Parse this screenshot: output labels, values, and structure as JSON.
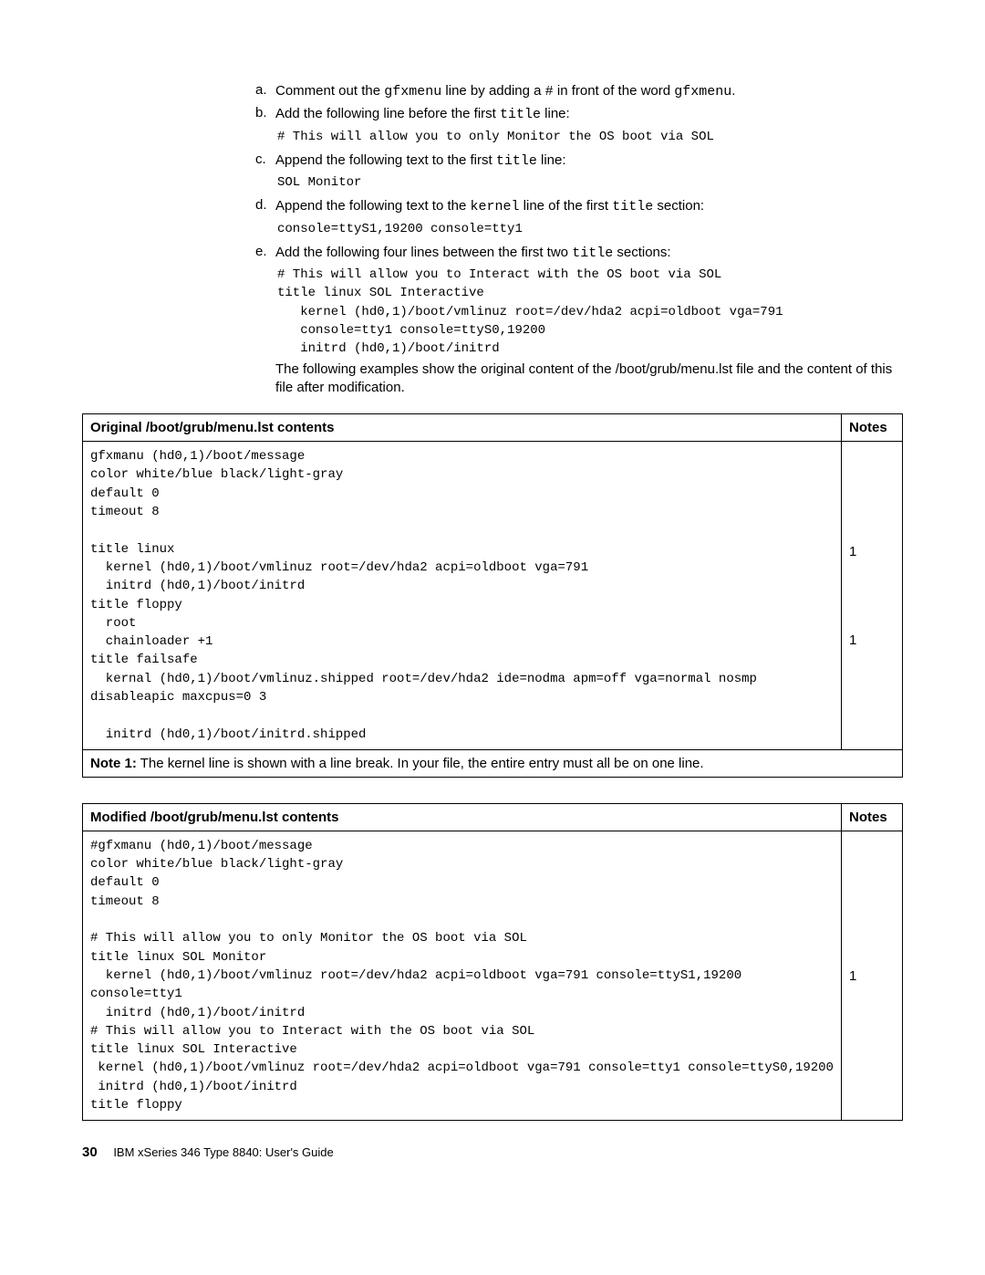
{
  "steps": [
    {
      "letter": "a.",
      "html": "Comment out the <span class='inline-mono'>gfxmenu</span> line by adding a <span class='inline-mono'>#</span> in front of the word <span class='inline-mono'>gfxmenu</span>."
    },
    {
      "letter": "b.",
      "html": "Add the following line before the first <span class='inline-mono'>title</span> line:",
      "code": "# This will allow you to only Monitor the OS boot via SOL"
    },
    {
      "letter": "c.",
      "html": "Append the following text to the first <span class='inline-mono'>title</span> line:",
      "code": "SOL Monitor"
    },
    {
      "letter": "d.",
      "html": "Append the following text to the <span class='inline-mono'>kernel</span> line of the first <span class='inline-mono'>title</span> section:",
      "code": "console=ttyS1,19200 console=tty1"
    },
    {
      "letter": "e.",
      "html": "Add the following four lines between the first two <span class='inline-mono'>title</span> sections:",
      "code": "# This will allow you to Interact with the OS boot via SOL\ntitle linux SOL Interactive\n   kernel (hd0,1)/boot/vmlinuz root=/dev/hda2 acpi=oldboot vga=791\n   console=tty1 console=ttyS0,19200\n   initrd (hd0,1)/boot/initrd",
      "followup": "The following examples show the original content of the /boot/grub/menu.lst file and the content of this file after modification."
    }
  ],
  "table1": {
    "header_left": "Original /boot/grub/menu.lst contents",
    "header_right": "Notes",
    "content": "gfxmanu (hd0,1)/boot/message\ncolor white/blue black/light-gray\ndefault 0\ntimeout 8\n\ntitle linux\n  kernel (hd0,1)/boot/vmlinuz root=/dev/hda2 acpi=oldboot vga=791\n  initrd (hd0,1)/boot/initrd\ntitle floppy\n  root\n  chainloader +1\ntitle failsafe\n  kernal (hd0,1)/boot/vmlinuz.shipped root=/dev/hda2 ide=nodma apm=off vga=normal nosmp\ndisableapic maxcpus=0 3\n\n  initrd (hd0,1)/boot/initrd.shipped",
    "notes": [
      "1",
      "1"
    ],
    "footnote_label": "Note 1:",
    "footnote_text": " The kernel line is shown with a line break. In your file, the entire entry must all be on one line."
  },
  "table2": {
    "header_left": "Modified /boot/grub/menu.lst contents",
    "header_right": "Notes",
    "content": "#gfxmanu (hd0,1)/boot/message\ncolor white/blue black/light-gray\ndefault 0\ntimeout 8\n\n# This will allow you to only Monitor the OS boot via SOL\ntitle linux SOL Monitor\n  kernel (hd0,1)/boot/vmlinuz root=/dev/hda2 acpi=oldboot vga=791 console=ttyS1,19200\nconsole=tty1\n  initrd (hd0,1)/boot/initrd\n# This will allow you to Interact with the OS boot via SOL\ntitle linux SOL Interactive\n kernel (hd0,1)/boot/vmlinuz root=/dev/hda2 acpi=oldboot vga=791 console=tty1 console=ttyS0,19200\n initrd (hd0,1)/boot/initrd\ntitle floppy",
    "notes": [
      "1"
    ]
  },
  "footer": {
    "page": "30",
    "text": "IBM xSeries 346 Type 8840:  User's Guide"
  }
}
